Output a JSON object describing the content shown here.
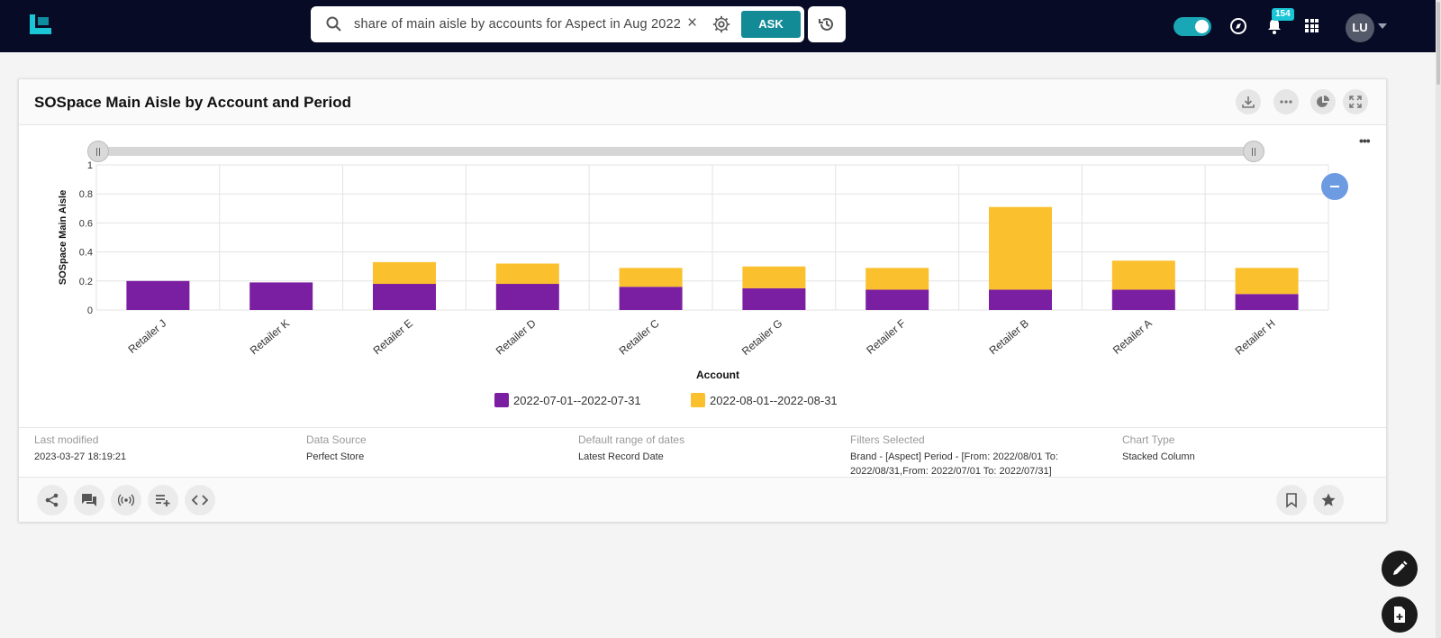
{
  "app": {
    "search": {
      "query": "share of main aisle by accounts for Aspect in Aug 2022",
      "ask_label": "ASK"
    },
    "notifications": {
      "count": "154"
    },
    "user": {
      "initials": "LU"
    }
  },
  "card": {
    "title": "SOSpace Main Aisle by Account and Period",
    "meta": {
      "last_modified_label": "Last modified",
      "last_modified_value": "2023-03-27 18:19:21",
      "data_source_label": "Data Source",
      "data_source_value": "Perfect Store",
      "default_range_label": "Default range of dates",
      "default_range_value": "Latest Record Date",
      "filters_label": "Filters Selected",
      "filters_line1": "Brand - [Aspect] Period - [From: 2022/08/01 To:",
      "filters_line2": "2022/08/31,From: 2022/07/01 To: 2022/07/31]",
      "chart_type_label": "Chart Type",
      "chart_type_value": "Stacked Column"
    }
  },
  "chart_data": {
    "type": "bar",
    "stacked": true,
    "categories": [
      "Retailer J",
      "Retailer K",
      "Retailer E",
      "Retailer D",
      "Retailer C",
      "Retailer G",
      "Retailer F",
      "Retailer B",
      "Retailer A",
      "Retailer H"
    ],
    "series": [
      {
        "name": "2022-07-01--2022-07-31",
        "color": "#7b1fa2",
        "values": [
          0.2,
          0.19,
          0.18,
          0.18,
          0.16,
          0.15,
          0.14,
          0.14,
          0.14,
          0.11
        ]
      },
      {
        "name": "2022-08-01--2022-08-31",
        "color": "#fbc02d",
        "values": [
          0,
          0,
          0.15,
          0.14,
          0.13,
          0.15,
          0.15,
          0.57,
          0.2,
          0.18
        ]
      }
    ],
    "xlabel": "Account",
    "ylabel": "SOSpace Main Aisle",
    "ylim": [
      0,
      1
    ],
    "yticks": [
      "0",
      "0.2",
      "0.4",
      "0.6",
      "0.8",
      "1"
    ],
    "grid": true,
    "legend_position": "bottom"
  }
}
